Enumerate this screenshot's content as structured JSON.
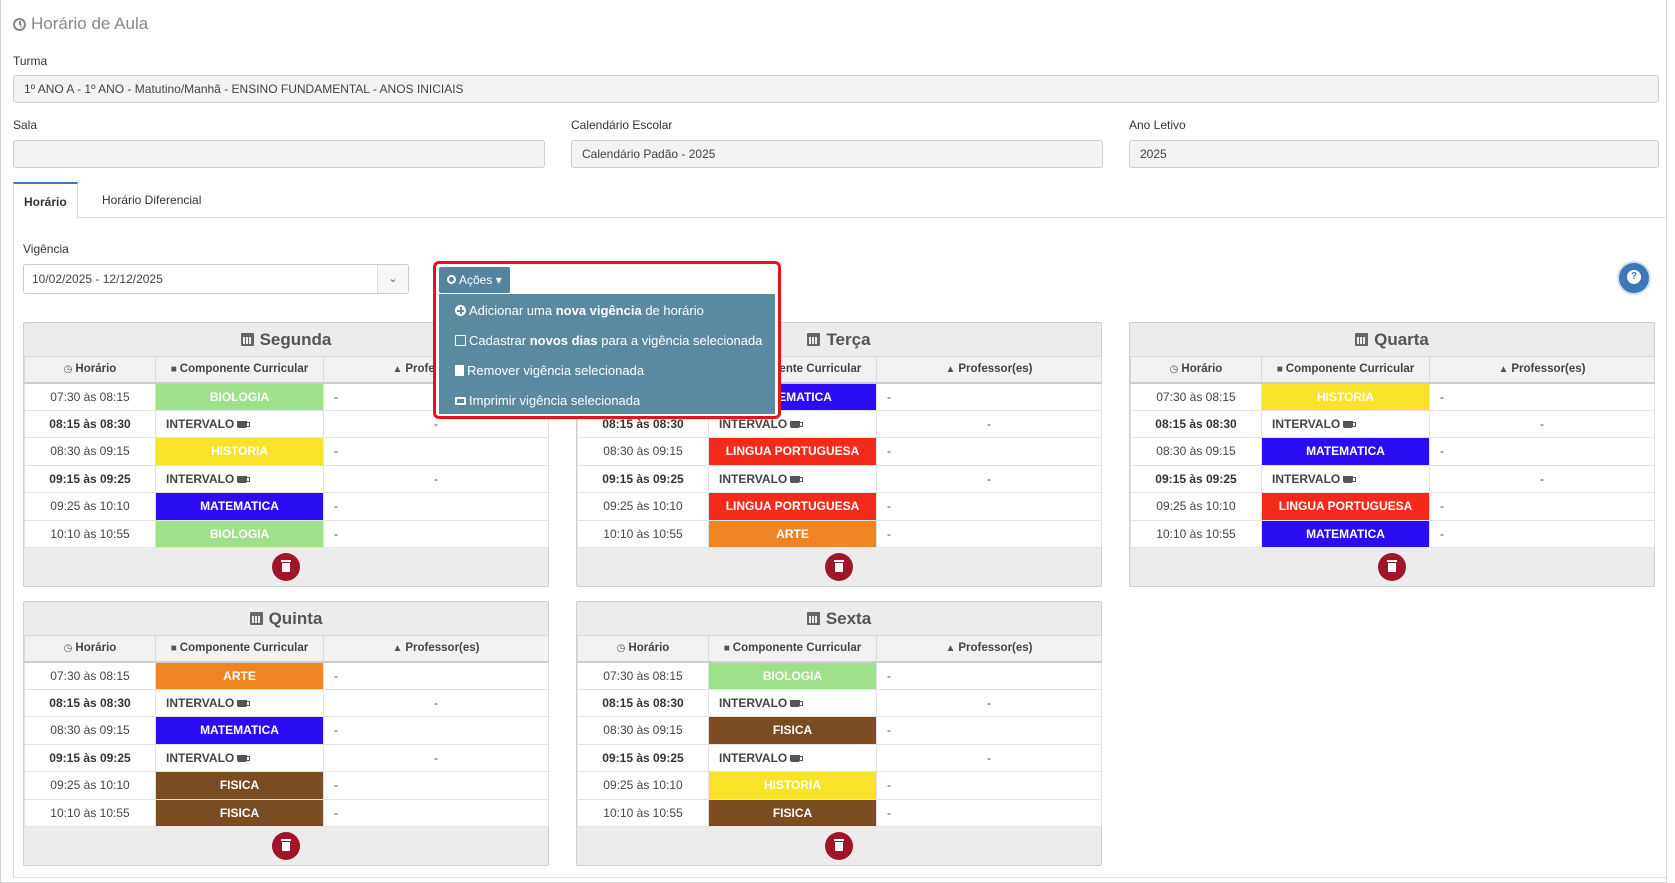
{
  "page": {
    "title": "Horário de Aula",
    "turma_label": "Turma",
    "turma_value": "1º ANO A - 1º ANO - Matutino/Manhã - ENSINO FUNDAMENTAL - ANOS INICIAIS",
    "sala_label": "Sala",
    "sala_value": "",
    "calendario_label": "Calendário Escolar",
    "calendario_value": "Calendário Padão - 2025",
    "ano_label": "Ano Letivo",
    "ano_value": "2025"
  },
  "tabs": [
    {
      "label": "Horário",
      "active": true
    },
    {
      "label": "Horário Diferencial",
      "active": false
    }
  ],
  "vigencia": {
    "label": "Vigência",
    "selected": "10/02/2025 - 12/12/2025"
  },
  "actions": {
    "button_label": "Ações",
    "menu": [
      {
        "icon": "plus-circle-icon",
        "pre": "Adicionar uma ",
        "bold": "nova vigência",
        "post": " de horário"
      },
      {
        "icon": "edit-icon",
        "pre": "Cadastrar ",
        "bold": "novos dias",
        "post": " para a vigência selecionada"
      },
      {
        "icon": "trash-icon",
        "pre": "Remover vigência selecionada",
        "bold": "",
        "post": ""
      },
      {
        "icon": "print-icon",
        "pre": "Imprimir vigência selecionada",
        "bold": "",
        "post": ""
      }
    ]
  },
  "table_headers": {
    "horario": "Horário",
    "componente": "Componente Curricular",
    "professor": "Professor(es)"
  },
  "colors": {
    "BIOLOGIA": "#9fe08a",
    "HISTORIA": "#f8e22a",
    "MATEMATICA": "#2b0df5",
    "LINGUA PORTUGUESA": "#f42a1b",
    "ARTE": "#ee8522",
    "FISICA": "#7a4c22",
    "accent": "#3d79b8",
    "delete": "#a0152a",
    "highlight": "#e5141c"
  },
  "days": [
    {
      "name": "Segunda",
      "rows": [
        {
          "time": "07:30 às 08:15",
          "subject": "BIOLOGIA",
          "prof": "-",
          "interval": false
        },
        {
          "time": "08:15 às 08:30",
          "subject": "INTERVALO",
          "prof": "-",
          "interval": true
        },
        {
          "time": "08:30 às 09:15",
          "subject": "HISTORIA",
          "prof": "-",
          "interval": false
        },
        {
          "time": "09:15 às 09:25",
          "subject": "INTERVALO",
          "prof": "-",
          "interval": true
        },
        {
          "time": "09:25 às 10:10",
          "subject": "MATEMATICA",
          "prof": "-",
          "interval": false
        },
        {
          "time": "10:10 às 10:55",
          "subject": "BIOLOGIA",
          "prof": "-",
          "interval": false
        }
      ]
    },
    {
      "name": "Terça",
      "rows": [
        {
          "time": "07:30 às 08:15",
          "subject": "MATEMATICA",
          "prof": "-",
          "interval": false
        },
        {
          "time": "08:15 às 08:30",
          "subject": "INTERVALO",
          "prof": "-",
          "interval": true
        },
        {
          "time": "08:30 às 09:15",
          "subject": "LINGUA PORTUGUESA",
          "prof": "-",
          "interval": false
        },
        {
          "time": "09:15 às 09:25",
          "subject": "INTERVALO",
          "prof": "-",
          "interval": true
        },
        {
          "time": "09:25 às 10:10",
          "subject": "LINGUA PORTUGUESA",
          "prof": "-",
          "interval": false
        },
        {
          "time": "10:10 às 10:55",
          "subject": "ARTE",
          "prof": "-",
          "interval": false
        }
      ]
    },
    {
      "name": "Quarta",
      "rows": [
        {
          "time": "07:30 às 08:15",
          "subject": "HISTORIA",
          "prof": "-",
          "interval": false
        },
        {
          "time": "08:15 às 08:30",
          "subject": "INTERVALO",
          "prof": "-",
          "interval": true
        },
        {
          "time": "08:30 às 09:15",
          "subject": "MATEMATICA",
          "prof": "-",
          "interval": false
        },
        {
          "time": "09:15 às 09:25",
          "subject": "INTERVALO",
          "prof": "-",
          "interval": true
        },
        {
          "time": "09:25 às 10:10",
          "subject": "LINGUA PORTUGUESA",
          "prof": "-",
          "interval": false
        },
        {
          "time": "10:10 às 10:55",
          "subject": "MATEMATICA",
          "prof": "-",
          "interval": false
        }
      ]
    },
    {
      "name": "Quinta",
      "rows": [
        {
          "time": "07:30 às 08:15",
          "subject": "ARTE",
          "prof": "-",
          "interval": false
        },
        {
          "time": "08:15 às 08:30",
          "subject": "INTERVALO",
          "prof": "-",
          "interval": true
        },
        {
          "time": "08:30 às 09:15",
          "subject": "MATEMATICA",
          "prof": "-",
          "interval": false
        },
        {
          "time": "09:15 às 09:25",
          "subject": "INTERVALO",
          "prof": "-",
          "interval": true
        },
        {
          "time": "09:25 às 10:10",
          "subject": "FISICA",
          "prof": "-",
          "interval": false
        },
        {
          "time": "10:10 às 10:55",
          "subject": "FISICA",
          "prof": "-",
          "interval": false
        }
      ]
    },
    {
      "name": "Sexta",
      "rows": [
        {
          "time": "07:30 às 08:15",
          "subject": "BIOLOGIA",
          "prof": "-",
          "interval": false
        },
        {
          "time": "08:15 às 08:30",
          "subject": "INTERVALO",
          "prof": "-",
          "interval": true
        },
        {
          "time": "08:30 às 09:15",
          "subject": "FISICA",
          "prof": "-",
          "interval": false
        },
        {
          "time": "09:15 às 09:25",
          "subject": "INTERVALO",
          "prof": "-",
          "interval": true
        },
        {
          "time": "09:25 às 10:10",
          "subject": "HISTORIA",
          "prof": "-",
          "interval": false
        },
        {
          "time": "10:10 às 10:55",
          "subject": "FISICA",
          "prof": "-",
          "interval": false
        }
      ]
    }
  ]
}
